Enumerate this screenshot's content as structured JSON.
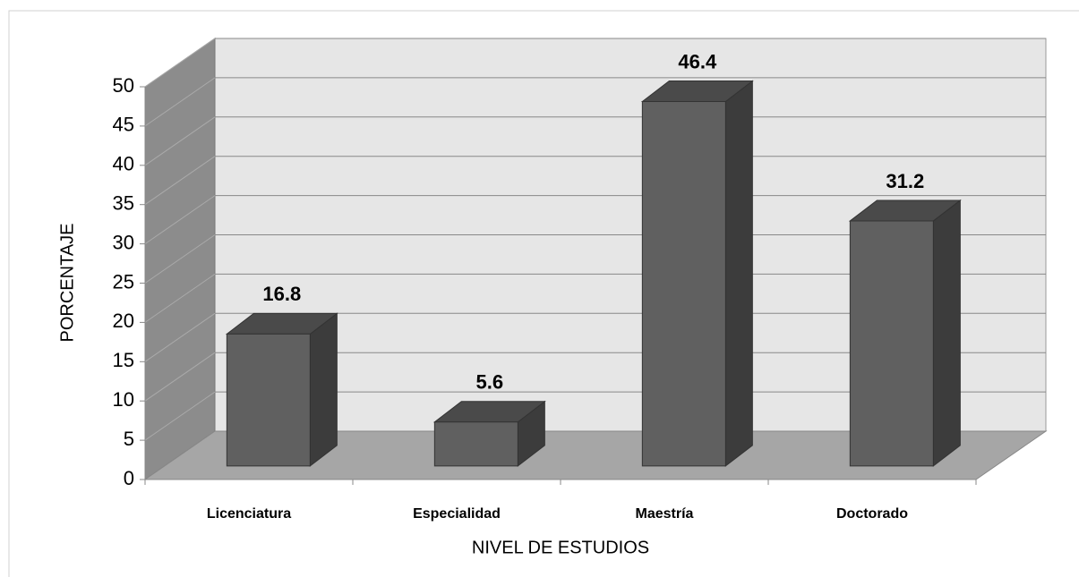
{
  "chart_data": {
    "type": "bar3d",
    "categories": [
      "Licenciatura",
      "Especialidad",
      "Maestría",
      "Doctorado"
    ],
    "values": [
      16.8,
      5.6,
      46.4,
      31.2
    ],
    "color": "#606060",
    "xlabel": "NIVEL DE ESTUDIOS",
    "ylabel": "PORCENTAJE",
    "ylim": [
      0,
      50
    ],
    "yticks": [
      0,
      5,
      10,
      15,
      20,
      25,
      30,
      35,
      40,
      45,
      50
    ],
    "grid": true
  }
}
